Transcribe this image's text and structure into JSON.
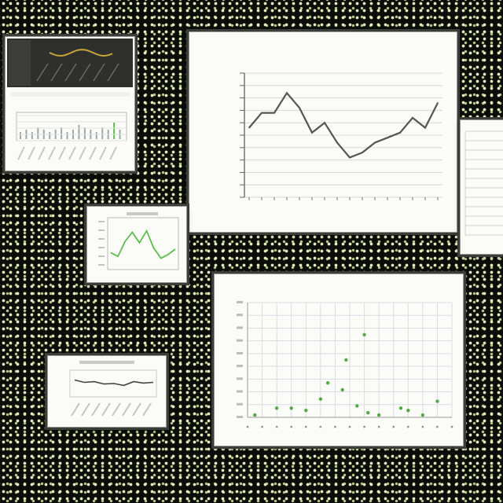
{
  "colors": {
    "line": "#555555",
    "scatter_green": "#55a84a",
    "mini_green": "#5cbf4c",
    "dark_panel": "#2f2f2d",
    "gold": "#c7a43a"
  },
  "chart_data": [
    {
      "type": "line",
      "title": "",
      "xlabel": "",
      "ylabel": "",
      "categories": [
        "",
        "",
        "",
        "",
        "",
        "",
        "",
        "",
        "",
        "",
        "",
        "",
        "",
        "",
        "",
        ""
      ],
      "series": [
        {
          "values": [
            14,
            17,
            17,
            21,
            18,
            13,
            15,
            11,
            8,
            9,
            11,
            12,
            13,
            16,
            14,
            19
          ]
        }
      ],
      "ylim": [
        0,
        25
      ],
      "grid": true
    },
    {
      "type": "scatter",
      "title": "",
      "xlabel": "",
      "ylabel": "",
      "x": [
        1,
        4,
        6,
        8,
        10,
        11,
        13,
        13.5,
        15,
        16,
        16.5,
        18,
        21,
        22,
        24,
        26
      ],
      "y": [
        2,
        8,
        8,
        6,
        16,
        30,
        24,
        50,
        10,
        72,
        4,
        2,
        8,
        6,
        2,
        14
      ],
      "ylim": [
        0,
        100
      ],
      "grid": true
    },
    {
      "type": "line",
      "title": "",
      "series": [
        {
          "values": [
            30,
            22,
            55,
            75,
            52,
            78,
            40,
            18,
            26,
            38
          ]
        }
      ],
      "ylim": [
        0,
        100
      ]
    },
    {
      "type": "line",
      "title": "",
      "series": [
        {
          "values": [
            65,
            55,
            58,
            48,
            50,
            42,
            58,
            52,
            55
          ]
        }
      ],
      "ylim": [
        0,
        100
      ]
    },
    {
      "type": "bar",
      "title": "",
      "values": [
        3,
        4,
        3,
        5,
        4,
        3,
        4,
        5,
        3,
        4,
        6,
        5,
        4,
        3,
        5,
        4,
        7,
        4
      ],
      "ylim": [
        0,
        10
      ]
    }
  ]
}
